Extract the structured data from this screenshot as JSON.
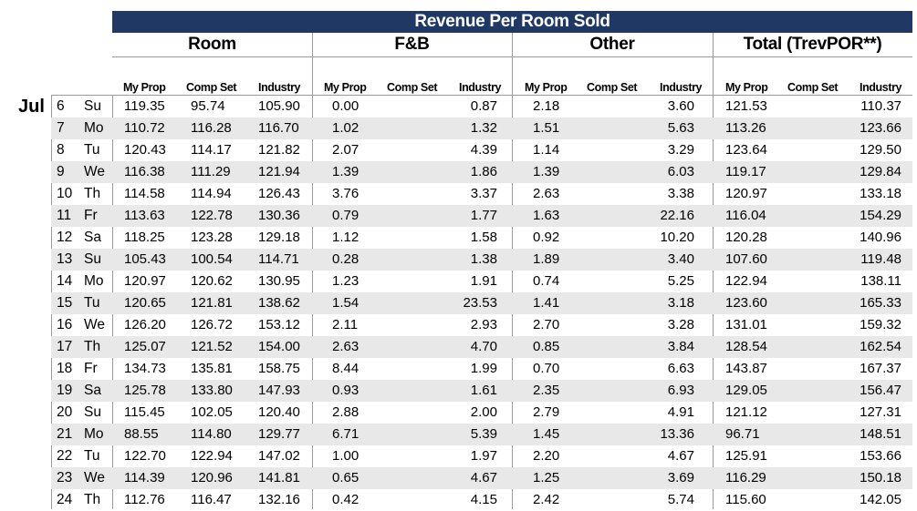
{
  "report": {
    "title": "Revenue Per Room Sold",
    "month": "Jul",
    "groups": [
      "Room",
      "F&B",
      "Other",
      "Total (TrevPOR**)"
    ],
    "subheaders": [
      "My Prop",
      "Comp Set",
      "Industry"
    ],
    "rows": [
      {
        "day": "6",
        "dow": "Su",
        "v": [
          "119.35",
          "95.74",
          "105.90",
          "0.00",
          "",
          "0.87",
          "2.18",
          "",
          "3.60",
          "121.53",
          "",
          "110.37"
        ]
      },
      {
        "day": "7",
        "dow": "Mo",
        "v": [
          "110.72",
          "116.28",
          "116.70",
          "1.02",
          "",
          "1.32",
          "1.51",
          "",
          "5.63",
          "113.26",
          "",
          "123.66"
        ]
      },
      {
        "day": "8",
        "dow": "Tu",
        "v": [
          "120.43",
          "114.17",
          "121.82",
          "2.07",
          "",
          "4.39",
          "1.14",
          "",
          "3.29",
          "123.64",
          "",
          "129.50"
        ]
      },
      {
        "day": "9",
        "dow": "We",
        "v": [
          "116.38",
          "111.29",
          "121.94",
          "1.39",
          "",
          "1.86",
          "1.39",
          "",
          "6.03",
          "119.17",
          "",
          "129.84"
        ]
      },
      {
        "day": "10",
        "dow": "Th",
        "v": [
          "114.58",
          "114.94",
          "126.43",
          "3.76",
          "",
          "3.37",
          "2.63",
          "",
          "3.38",
          "120.97",
          "",
          "133.18"
        ]
      },
      {
        "day": "11",
        "dow": "Fr",
        "v": [
          "113.63",
          "122.78",
          "130.36",
          "0.79",
          "",
          "1.77",
          "1.63",
          "",
          "22.16",
          "116.04",
          "",
          "154.29"
        ]
      },
      {
        "day": "12",
        "dow": "Sa",
        "v": [
          "118.25",
          "123.28",
          "129.18",
          "1.12",
          "",
          "1.58",
          "0.92",
          "",
          "10.20",
          "120.28",
          "",
          "140.96"
        ]
      },
      {
        "day": "13",
        "dow": "Su",
        "v": [
          "105.43",
          "100.54",
          "114.71",
          "0.28",
          "",
          "1.38",
          "1.89",
          "",
          "3.40",
          "107.60",
          "",
          "119.48"
        ]
      },
      {
        "day": "14",
        "dow": "Mo",
        "v": [
          "120.97",
          "120.62",
          "130.95",
          "1.23",
          "",
          "1.91",
          "0.74",
          "",
          "5.25",
          "122.94",
          "",
          "138.11"
        ]
      },
      {
        "day": "15",
        "dow": "Tu",
        "v": [
          "120.65",
          "121.81",
          "138.62",
          "1.54",
          "",
          "23.53",
          "1.41",
          "",
          "3.18",
          "123.60",
          "",
          "165.33"
        ]
      },
      {
        "day": "16",
        "dow": "We",
        "v": [
          "126.20",
          "126.72",
          "153.12",
          "2.11",
          "",
          "2.93",
          "2.70",
          "",
          "3.28",
          "131.01",
          "",
          "159.32"
        ]
      },
      {
        "day": "17",
        "dow": "Th",
        "v": [
          "125.07",
          "121.52",
          "154.00",
          "2.63",
          "",
          "4.70",
          "0.85",
          "",
          "3.84",
          "128.54",
          "",
          "162.54"
        ]
      },
      {
        "day": "18",
        "dow": "Fr",
        "v": [
          "134.73",
          "135.81",
          "158.75",
          "8.44",
          "",
          "1.99",
          "0.70",
          "",
          "6.63",
          "143.87",
          "",
          "167.37"
        ]
      },
      {
        "day": "19",
        "dow": "Sa",
        "v": [
          "125.78",
          "133.80",
          "147.93",
          "0.93",
          "",
          "1.61",
          "2.35",
          "",
          "6.93",
          "129.05",
          "",
          "156.47"
        ]
      },
      {
        "day": "20",
        "dow": "Su",
        "v": [
          "115.45",
          "102.05",
          "120.40",
          "2.88",
          "",
          "2.00",
          "2.79",
          "",
          "4.91",
          "121.12",
          "",
          "127.31"
        ]
      },
      {
        "day": "21",
        "dow": "Mo",
        "v": [
          "88.55",
          "114.80",
          "129.77",
          "6.71",
          "",
          "5.39",
          "1.45",
          "",
          "13.36",
          "96.71",
          "",
          "148.51"
        ]
      },
      {
        "day": "22",
        "dow": "Tu",
        "v": [
          "122.70",
          "122.94",
          "147.02",
          "1.00",
          "",
          "1.97",
          "2.20",
          "",
          "4.67",
          "125.91",
          "",
          "153.66"
        ]
      },
      {
        "day": "23",
        "dow": "We",
        "v": [
          "114.39",
          "120.96",
          "141.81",
          "0.65",
          "",
          "4.67",
          "1.25",
          "",
          "3.69",
          "116.29",
          "",
          "150.18"
        ]
      },
      {
        "day": "24",
        "dow": "Th",
        "v": [
          "112.76",
          "116.47",
          "132.16",
          "0.42",
          "",
          "4.15",
          "2.42",
          "",
          "5.74",
          "115.60",
          "",
          "142.05"
        ]
      }
    ]
  }
}
